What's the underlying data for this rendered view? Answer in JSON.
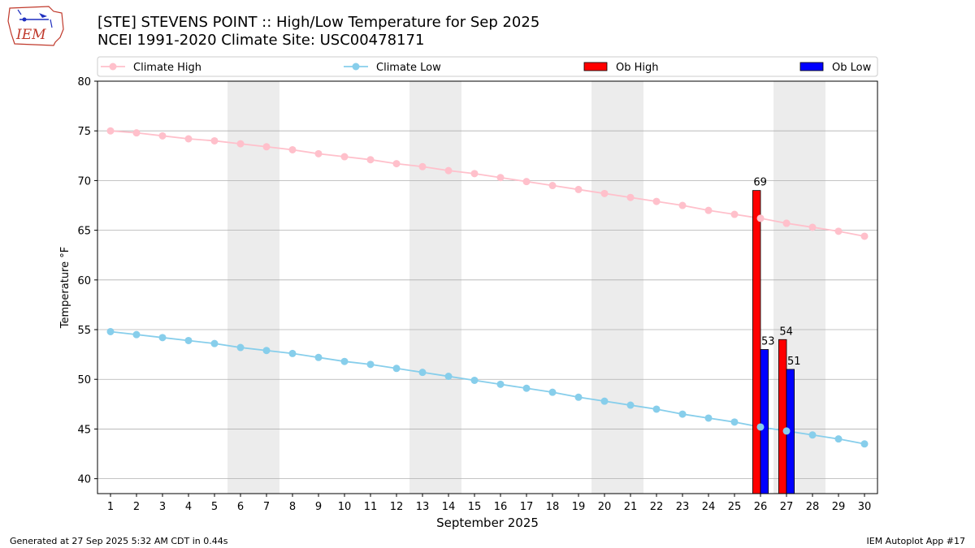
{
  "header": {
    "title": "[STE] STEVENS POINT :: High/Low Temperature for Sep 2025",
    "subtitle": "NCEI 1991-2020 Climate Site: USC00478171",
    "logo_text": "IEM"
  },
  "footer": {
    "generated": "Generated at 27 Sep 2025 5:32 AM CDT in 0.44s",
    "app": "IEM Autoplot App #17"
  },
  "colors": {
    "climate_high": "#ffc0cb",
    "climate_low": "#87ceeb",
    "ob_high": "#ff0000",
    "ob_low": "#0000ff",
    "weekend_shade": "#ececec",
    "grid": "#b0b0b0"
  },
  "chart_data": {
    "type": "bar",
    "xlabel": "September 2025",
    "ylabel": "Temperature °F",
    "xlim": [
      0.5,
      30.5
    ],
    "ylim": [
      38.5,
      80
    ],
    "yticks": [
      40,
      45,
      50,
      55,
      60,
      65,
      70,
      75,
      80
    ],
    "grid": "horizontal",
    "legend_position": "top",
    "weekend_bands": [
      [
        6,
        7
      ],
      [
        13,
        14
      ],
      [
        20,
        21
      ],
      [
        27,
        28
      ]
    ],
    "days": [
      1,
      2,
      3,
      4,
      5,
      6,
      7,
      8,
      9,
      10,
      11,
      12,
      13,
      14,
      15,
      16,
      17,
      18,
      19,
      20,
      21,
      22,
      23,
      24,
      25,
      26,
      27,
      28,
      29,
      30
    ],
    "series": [
      {
        "name": "Climate High",
        "kind": "line",
        "values": [
          75.0,
          74.8,
          74.5,
          74.2,
          74.0,
          73.7,
          73.4,
          73.1,
          72.7,
          72.4,
          72.1,
          71.7,
          71.4,
          71.0,
          70.7,
          70.3,
          69.9,
          69.5,
          69.1,
          68.7,
          68.3,
          67.9,
          67.5,
          67.0,
          66.6,
          66.2,
          65.7,
          65.3,
          64.9,
          64.4
        ]
      },
      {
        "name": "Climate Low",
        "kind": "line",
        "values": [
          54.8,
          54.5,
          54.2,
          53.9,
          53.6,
          53.2,
          52.9,
          52.6,
          52.2,
          51.8,
          51.5,
          51.1,
          50.7,
          50.3,
          49.9,
          49.5,
          49.1,
          48.7,
          48.2,
          47.8,
          47.4,
          47.0,
          46.5,
          46.1,
          45.7,
          45.2,
          44.8,
          44.4,
          44.0,
          43.5
        ]
      },
      {
        "name": "Ob High",
        "kind": "bar",
        "points": [
          {
            "day": 26,
            "value": 69,
            "label": "69"
          },
          {
            "day": 27,
            "value": 54,
            "label": "54"
          }
        ]
      },
      {
        "name": "Ob Low",
        "kind": "bar",
        "points": [
          {
            "day": 26,
            "value": 53,
            "label": "53"
          },
          {
            "day": 27,
            "value": 51,
            "label": "51"
          }
        ]
      }
    ]
  }
}
